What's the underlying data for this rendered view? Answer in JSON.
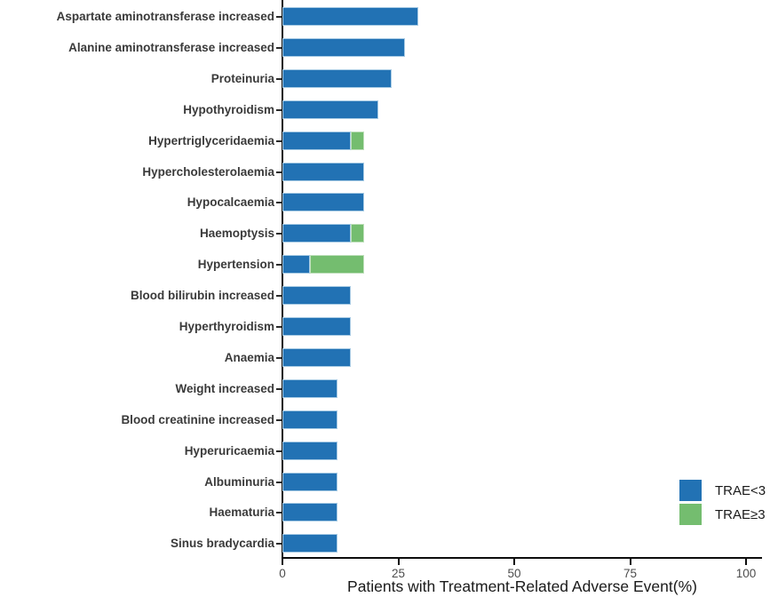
{
  "chart_data": {
    "type": "bar",
    "orientation": "horizontal",
    "stacked": true,
    "title": "",
    "xlabel": "Patients with Treatment-Related Adverse Event(%)",
    "ylabel": "",
    "xlim": [
      0,
      103
    ],
    "x_ticks": [
      "0",
      "25",
      "50",
      "75",
      "100"
    ],
    "x_tick_values": [
      0,
      25,
      50,
      75,
      100
    ],
    "grid": false,
    "legend_position": "right",
    "categories": [
      "Aspartate aminotransferase increased",
      "Alanine aminotransferase increased",
      "Proteinuria",
      "Hypothyroidism",
      "Hypertriglyceridaemia",
      "Hypercholesterolaemia",
      "Hypocalcaemia",
      "Haemoptysis",
      "Hypertension",
      "Blood bilirubin increased",
      "Hyperthyroidism",
      "Anaemia",
      "Weight increased",
      "Blood creatinine increased",
      "Hyperuricaemia",
      "Albuminuria",
      "Haematuria",
      "Sinus bradycardia"
    ],
    "series": [
      {
        "name": "TRAE<3",
        "color": "#2272B4",
        "edge_color": "#A8CBE4",
        "values": [
          29.4,
          26.5,
          23.5,
          20.6,
          14.7,
          17.6,
          17.6,
          14.7,
          5.9,
          14.7,
          14.7,
          14.7,
          11.8,
          11.8,
          11.8,
          11.8,
          11.8,
          11.8
        ]
      },
      {
        "name": "TRAE≥3",
        "color": "#74BD6F",
        "edge_color": "#C0E0BC",
        "values": [
          0,
          0,
          0,
          0,
          2.9,
          0,
          0,
          2.9,
          11.8,
          0,
          0,
          0,
          0,
          0,
          0,
          0,
          0,
          0
        ]
      }
    ]
  },
  "legend": {
    "items": [
      {
        "label": "TRAE<3",
        "color": "#2272B4"
      },
      {
        "label": "TRAE≥3",
        "color": "#74BD6F"
      }
    ]
  }
}
